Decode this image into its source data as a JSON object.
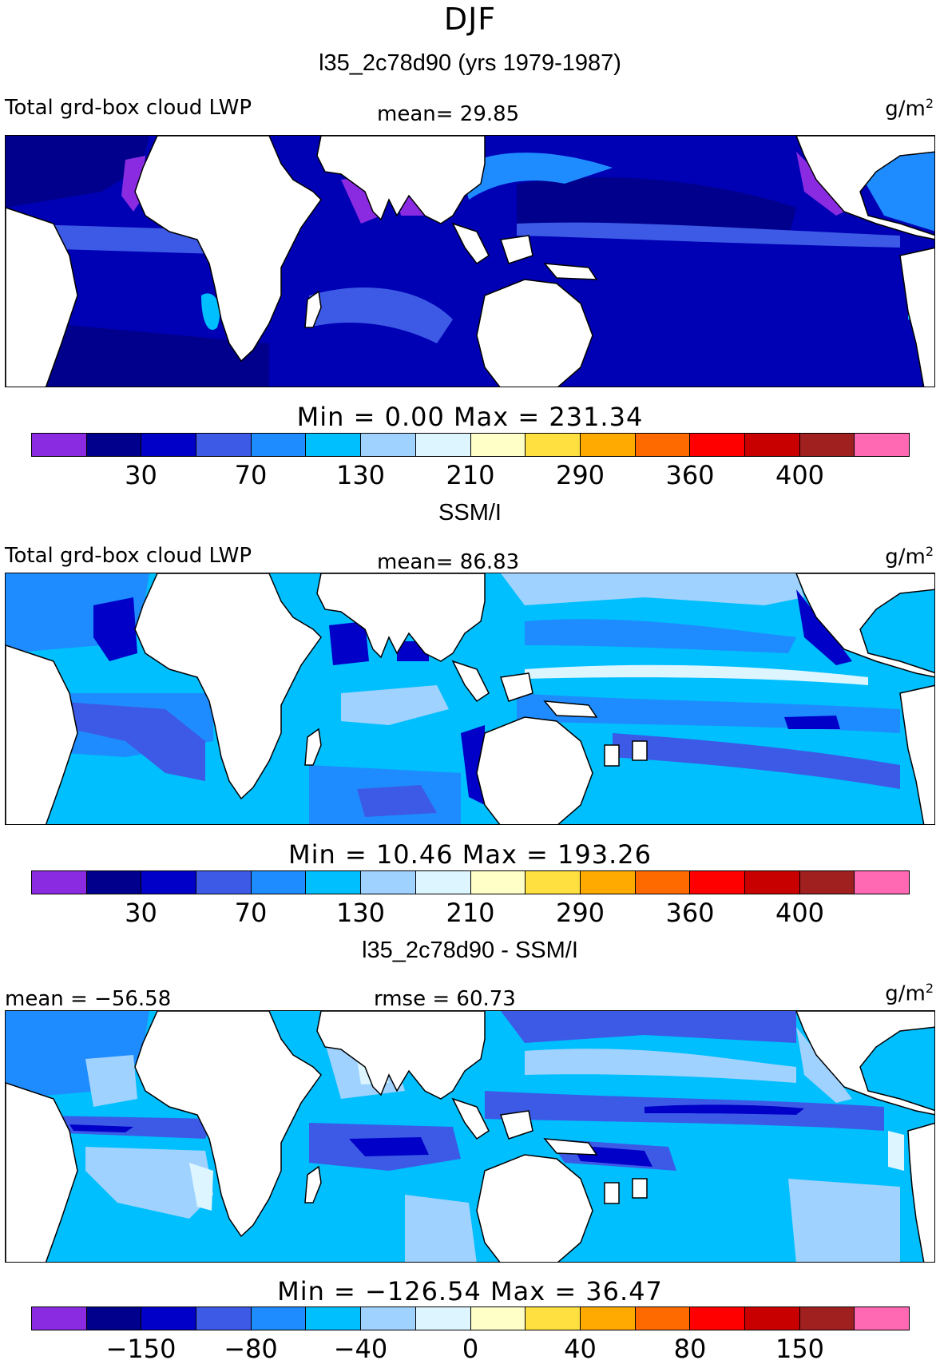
{
  "figure": {
    "season": "DJF",
    "colors": [
      "#8a2be2",
      "#00008c",
      "#0000c8",
      "#3c5ae6",
      "#1e8cff",
      "#00bfff",
      "#a0d2ff",
      "#dcf5ff",
      "#ffffc8",
      "#ffe040",
      "#ffaa00",
      "#ff6a00",
      "#ff0000",
      "#c80000",
      "#a02020",
      "#ff69b4"
    ]
  },
  "panels": [
    {
      "title": "l35_2c78d90 (yrs 1979-1987)",
      "left_label": "Total grd-box cloud LWP",
      "stat_label": "mean=  29.85",
      "unit": "g/m",
      "unit_sup": "2",
      "minmax": "Min =    0.00  Max = 231.34",
      "ticks": [
        "30",
        "70",
        "130",
        "210",
        "290",
        "360",
        "400"
      ],
      "ocean": "#0000b4",
      "patches": [
        "#00008c",
        "#3c5ae6",
        "#1e8cff",
        "#00bfff",
        "#8a2be2"
      ]
    },
    {
      "title": "SSM/I",
      "left_label": "Total grd-box cloud LWP",
      "stat_label": "mean=  86.83",
      "unit": "g/m",
      "unit_sup": "2",
      "minmax": "Min =  10.46  Max = 193.26",
      "ticks": [
        "30",
        "70",
        "130",
        "210",
        "290",
        "360",
        "400"
      ],
      "ocean": "#00bfff",
      "patches": [
        "#1e8cff",
        "#3c5ae6",
        "#0000c8",
        "#a0d2ff",
        "#dcf5ff"
      ]
    },
    {
      "title": "l35_2c78d90 - SSM/I",
      "left_label": "mean = −56.58",
      "stat_label": "rmse =  60.73",
      "unit": "g/m",
      "unit_sup": "2",
      "minmax": "Min = −126.54  Max =   36.47",
      "ticks": [
        "−150",
        "−80",
        "−40",
        "0",
        "40",
        "80",
        "150"
      ],
      "ocean": "#00bfff",
      "patches": [
        "#1e8cff",
        "#3c5ae6",
        "#a0d2ff",
        "#dcf5ff",
        "#0000c8"
      ]
    }
  ]
}
